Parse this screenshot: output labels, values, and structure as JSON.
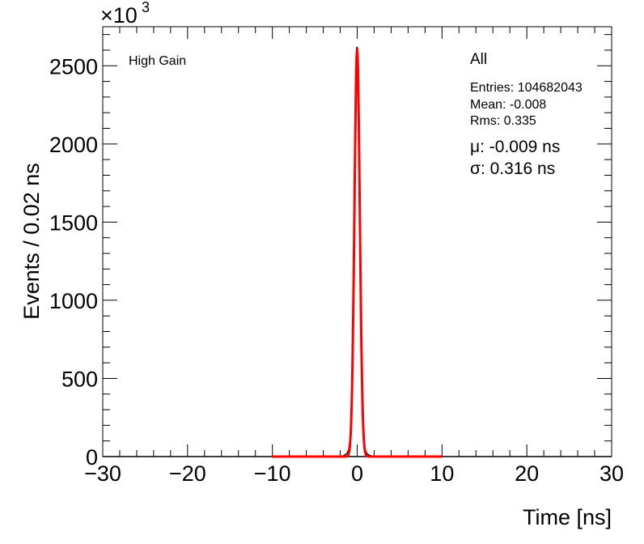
{
  "chart_data": {
    "type": "line",
    "title": "",
    "xlabel": "Time [ns]",
    "ylabel": "Events / 0.02 ns",
    "y_multiplier_label": "×10",
    "y_multiplier_exponent": "3",
    "xlim": [
      -30,
      30
    ],
    "ylim": [
      0,
      2750
    ],
    "x_ticks": [
      -30,
      -20,
      -10,
      0,
      10,
      20,
      30
    ],
    "y_ticks": [
      0,
      500,
      1000,
      1500,
      2000,
      2500
    ],
    "x_tick_labels": [
      "−30",
      "−20",
      "−10",
      "0",
      "10",
      "20",
      "30"
    ],
    "y_tick_labels": [
      "0",
      "500",
      "1000",
      "1500",
      "2000",
      "2500"
    ],
    "grid": false,
    "annotations": {
      "channel": "High Gain",
      "selection": "All",
      "entries": "Entries: 104682043",
      "mean": "Mean: -0.008",
      "rms": "Rms: 0.335",
      "mu": "μ: -0.009 ns",
      "sigma": "σ: 0.316 ns"
    },
    "series": [
      {
        "color": "#000000",
        "style": "histogram",
        "x": [
          -2.0,
          -1.6,
          -1.2,
          -1.0,
          -0.8,
          -0.6,
          -0.5,
          -0.4,
          -0.3,
          -0.2,
          -0.1,
          -0.05,
          0.0,
          0.05,
          0.1,
          0.2,
          0.3,
          0.4,
          0.5,
          0.6,
          0.8,
          1.0,
          1.2,
          1.6,
          2.0
        ],
        "values": [
          0,
          6,
          20,
          45,
          120,
          390,
          680,
          1140,
          1700,
          2250,
          2560,
          2620,
          2600,
          2570,
          2510,
          2160,
          1620,
          1040,
          590,
          310,
          90,
          35,
          15,
          5,
          0
        ]
      },
      {
        "color": "#ff0000",
        "style": "gaussian-fit",
        "x_range": [
          -10,
          10
        ],
        "mu": -0.009,
        "sigma": 0.316,
        "amplitude": 2600
      }
    ]
  }
}
